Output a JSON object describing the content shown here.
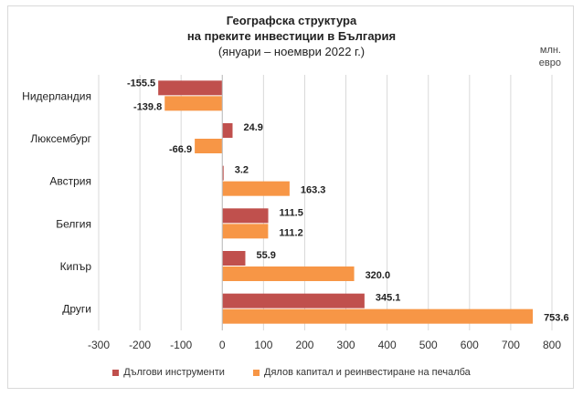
{
  "chart_data": {
    "type": "bar",
    "orientation": "horizontal",
    "title_line1": "Географска структура",
    "title_line2": "на преките инвестиции в България",
    "subtitle": "(януари – ноември 2022 г.)",
    "unit_label": "млн.\nевро",
    "categories": [
      "Нидерландия",
      "Люксембург",
      "Австрия",
      "Белгия",
      "Кипър",
      "Други"
    ],
    "series": [
      {
        "name": "Дългови инструменти",
        "color": "#c0504d",
        "values": [
          -155.5,
          24.9,
          3.2,
          111.5,
          55.9,
          345.1
        ],
        "labels": [
          "-155.5",
          "24.9",
          "3.2",
          "111.5",
          "55.9",
          "345.1"
        ]
      },
      {
        "name": "Дялов капитал и реинвестиране на печалба",
        "color": "#f79646",
        "values": [
          -139.8,
          -66.9,
          163.3,
          111.2,
          320.0,
          753.6
        ],
        "labels": [
          "-139.8",
          "-66.9",
          "163.3",
          "111.2",
          "320.0",
          "753.6"
        ]
      }
    ],
    "xlim": [
      -300,
      800
    ],
    "xticks": [
      -300,
      -200,
      -100,
      0,
      100,
      200,
      300,
      400,
      500,
      600,
      700,
      800
    ],
    "grid": "vertical",
    "legend_position": "bottom"
  }
}
